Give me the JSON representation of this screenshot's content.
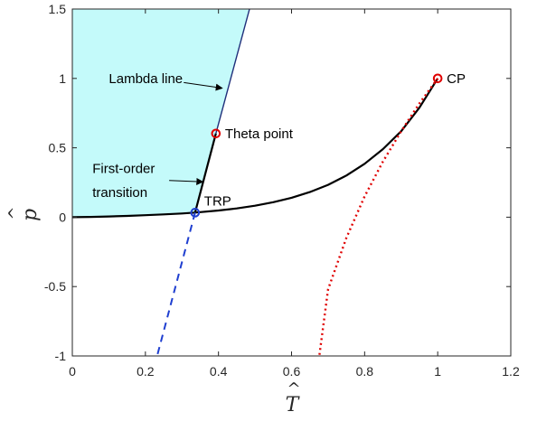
{
  "chart_data": {
    "type": "line",
    "title": "",
    "xlabel": "T",
    "ylabel": "p",
    "xlabel_accent": "^",
    "ylabel_accent": "^",
    "xlim": [
      0,
      1.2
    ],
    "ylim": [
      -1,
      1.5
    ],
    "x_ticks": [
      0,
      0.2,
      0.4,
      0.6,
      0.8,
      1,
      1.2
    ],
    "x_tick_labels": [
      "0",
      "0.2",
      "0.4",
      "0.6",
      "0.8",
      "1",
      "1.2"
    ],
    "y_ticks": [
      -1,
      -0.5,
      0,
      0.5,
      1,
      1.5
    ],
    "y_tick_labels": [
      "-1",
      "-0.5",
      "0",
      "0.5",
      "1",
      "1.5"
    ],
    "grid": false,
    "colors": {
      "shaded_region": "#c4fafa",
      "phase_boundary": "#000000",
      "lambda_line": "#1f2f7a",
      "blue_dashed": "#1f3fd0",
      "red_dotted": "#e00000",
      "trp_marker": "#1f3fd0",
      "point_marker": "#e00000"
    },
    "shaded_region": {
      "points": [
        [
          0,
          0
        ],
        [
          0.1,
          0.004
        ],
        [
          0.2,
          0.012
        ],
        [
          0.3,
          0.025
        ],
        [
          0.336,
          0.033
        ],
        [
          0.393,
          0.603
        ],
        [
          0.485,
          1.5
        ],
        [
          0,
          1.5
        ]
      ]
    },
    "series": [
      {
        "style": "solid-thick",
        "color_key": "phase_boundary",
        "x": [
          0,
          0.05,
          0.1,
          0.15,
          0.2,
          0.25,
          0.3,
          0.336
        ],
        "y": [
          0,
          0.002,
          0.005,
          0.009,
          0.014,
          0.02,
          0.027,
          0.033
        ]
      },
      {
        "style": "solid-thick",
        "color_key": "phase_boundary",
        "x": [
          0.336,
          0.4,
          0.45,
          0.5,
          0.55,
          0.6,
          0.65,
          0.7,
          0.75,
          0.8,
          0.85,
          0.9,
          0.95,
          1.0
        ],
        "y": [
          0.033,
          0.048,
          0.063,
          0.083,
          0.108,
          0.14,
          0.181,
          0.233,
          0.3,
          0.385,
          0.49,
          0.62,
          0.79,
          1.0
        ]
      },
      {
        "style": "solid-thick",
        "color_key": "phase_boundary",
        "x": [
          0.336,
          0.393
        ],
        "y": [
          0.033,
          0.603
        ]
      },
      {
        "style": "solid-thin",
        "color_key": "lambda_line",
        "x": [
          0.393,
          0.485
        ],
        "y": [
          0.603,
          1.5
        ]
      },
      {
        "style": "dashed",
        "color_key": "blue_dashed",
        "x": [
          0.336,
          0.232
        ],
        "y": [
          0.033,
          -1.0
        ]
      },
      {
        "style": "dotted",
        "color_key": "red_dotted",
        "x": [
          1.0,
          0.95,
          0.9,
          0.85,
          0.8,
          0.75,
          0.7,
          0.676
        ],
        "y": [
          1.0,
          0.82,
          0.62,
          0.4,
          0.15,
          -0.15,
          -0.52,
          -1.0
        ]
      }
    ],
    "points": [
      {
        "label": "CP",
        "x": 1.0,
        "y": 1.0,
        "color_key": "point_marker"
      },
      {
        "label": "Theta point",
        "x": 0.393,
        "y": 0.603,
        "color_key": "point_marker"
      },
      {
        "label": "TRP",
        "x": 0.336,
        "y": 0.033,
        "color_key": "trp_marker"
      }
    ],
    "annotations": [
      {
        "text": "Lambda line",
        "x": 0.1,
        "y": 1.0,
        "arrow_from": [
          0.305,
          0.97
        ],
        "arrow_to": [
          0.41,
          0.93
        ]
      },
      {
        "text": "First-order",
        "x": 0.055,
        "y": 0.35,
        "arrow_from": [
          0.265,
          0.265
        ],
        "arrow_to": [
          0.357,
          0.255
        ]
      },
      {
        "text": "transition",
        "x": 0.055,
        "y": 0.18
      }
    ]
  }
}
